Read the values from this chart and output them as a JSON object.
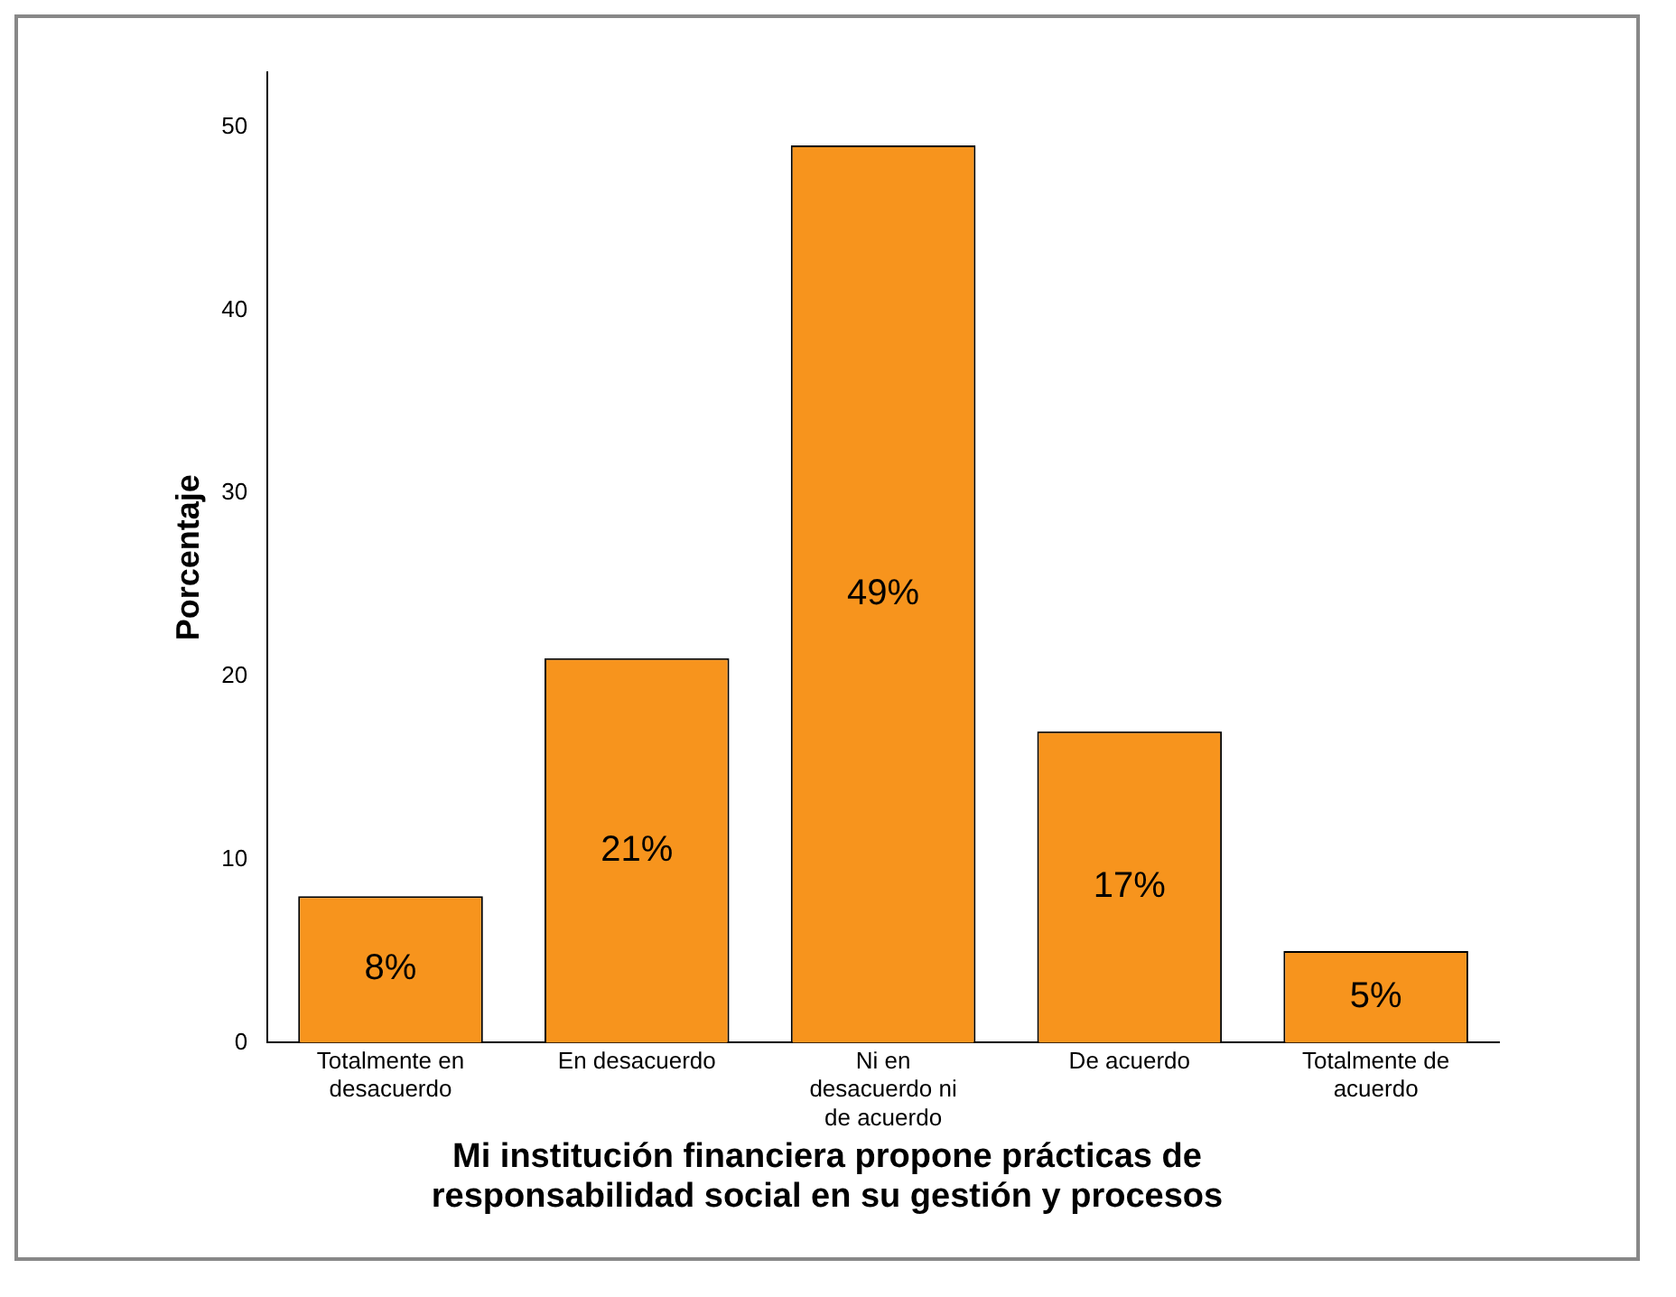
{
  "chart_data": {
    "type": "bar",
    "xlabel": "Mi institución financiera propone prácticas de responsabilidad social en su gestión y procesos",
    "ylabel": "Porcentaje",
    "categories": [
      "Totalmente en desacuerdo",
      "En desacuerdo",
      "Ni en desacuerdo ni de acuerdo",
      "De acuerdo",
      "Totalmente de acuerdo"
    ],
    "values": [
      8,
      21,
      49,
      17,
      5
    ],
    "value_labels": [
      "8%",
      "21%",
      "49%",
      "17%",
      "5%"
    ],
    "color": "#f7941d",
    "ylim": [
      0,
      53
    ],
    "yticks": [
      0,
      10,
      20,
      30,
      40,
      50
    ],
    "grid": false,
    "legend": false
  }
}
